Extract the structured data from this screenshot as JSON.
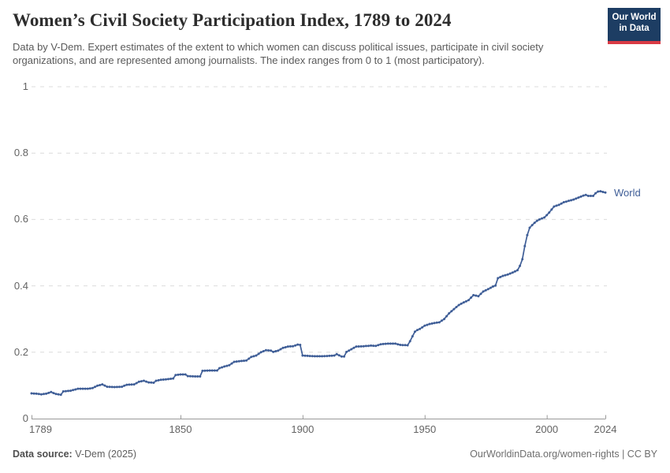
{
  "header": {
    "title": "Women’s Civil Society Participation Index, 1789 to 2024",
    "subtitle": "Data by V-Dem. Expert estimates of the extent to which women can discuss political issues, participate in civil society organizations, and are represented among journalists. The index ranges from 0 to 1 (most participatory)."
  },
  "logo": {
    "line1": "Our World",
    "line2": "in Data",
    "bg_color": "#1d3d63",
    "accent_color": "#d93a45"
  },
  "footer": {
    "source_label": "Data source:",
    "source_value": " V-Dem (2025)",
    "note": "OurWorldinData.org/women-rights | CC BY"
  },
  "colors": {
    "line": "#3f5e97",
    "gridline": "#dcdcdc",
    "axis": "#9a9a9a",
    "tick_text": "#636363"
  },
  "chart_data": {
    "type": "line",
    "title": "Women’s Civil Society Participation Index, 1789 to 2024",
    "xlabel": "",
    "ylabel": "",
    "x": {
      "min": 1789,
      "max": 2024,
      "ticks": [
        1789,
        1850,
        1900,
        1950,
        2000,
        2024
      ]
    },
    "y": {
      "min": 0,
      "max": 1,
      "ticks": [
        0,
        0.2,
        0.4,
        0.6,
        0.8,
        1
      ],
      "tick_labels": [
        "0",
        "0.2",
        "0.4",
        "0.6",
        "0.8",
        "1"
      ],
      "grid": "dashed"
    },
    "legend_position": "end-of-line",
    "series": [
      {
        "name": "World",
        "color": "#3f5e97",
        "points": [
          [
            1789,
            0.076
          ],
          [
            1791,
            0.075
          ],
          [
            1793,
            0.073
          ],
          [
            1795,
            0.075
          ],
          [
            1797,
            0.08
          ],
          [
            1799,
            0.074
          ],
          [
            1801,
            0.072
          ],
          [
            1802,
            0.082
          ],
          [
            1805,
            0.084
          ],
          [
            1808,
            0.09
          ],
          [
            1812,
            0.09
          ],
          [
            1814,
            0.092
          ],
          [
            1816,
            0.099
          ],
          [
            1818,
            0.103
          ],
          [
            1820,
            0.096
          ],
          [
            1823,
            0.095
          ],
          [
            1826,
            0.096
          ],
          [
            1828,
            0.102
          ],
          [
            1831,
            0.103
          ],
          [
            1833,
            0.111
          ],
          [
            1835,
            0.114
          ],
          [
            1837,
            0.109
          ],
          [
            1839,
            0.108
          ],
          [
            1840,
            0.114
          ],
          [
            1842,
            0.117
          ],
          [
            1845,
            0.119
          ],
          [
            1847,
            0.121
          ],
          [
            1848,
            0.131
          ],
          [
            1850,
            0.133
          ],
          [
            1852,
            0.133
          ],
          [
            1853,
            0.128
          ],
          [
            1856,
            0.127
          ],
          [
            1858,
            0.127
          ],
          [
            1859,
            0.144
          ],
          [
            1862,
            0.145
          ],
          [
            1865,
            0.145
          ],
          [
            1866,
            0.152
          ],
          [
            1868,
            0.157
          ],
          [
            1870,
            0.161
          ],
          [
            1872,
            0.171
          ],
          [
            1874,
            0.173
          ],
          [
            1877,
            0.175
          ],
          [
            1879,
            0.186
          ],
          [
            1881,
            0.19
          ],
          [
            1883,
            0.2
          ],
          [
            1885,
            0.206
          ],
          [
            1887,
            0.205
          ],
          [
            1888,
            0.201
          ],
          [
            1890,
            0.205
          ],
          [
            1892,
            0.213
          ],
          [
            1894,
            0.217
          ],
          [
            1896,
            0.218
          ],
          [
            1898,
            0.223
          ],
          [
            1899,
            0.222
          ],
          [
            1900,
            0.19
          ],
          [
            1902,
            0.189
          ],
          [
            1905,
            0.188
          ],
          [
            1908,
            0.188
          ],
          [
            1911,
            0.189
          ],
          [
            1913,
            0.19
          ],
          [
            1914,
            0.194
          ],
          [
            1916,
            0.187
          ],
          [
            1917,
            0.187
          ],
          [
            1918,
            0.201
          ],
          [
            1920,
            0.209
          ],
          [
            1922,
            0.217
          ],
          [
            1925,
            0.218
          ],
          [
            1928,
            0.22
          ],
          [
            1930,
            0.219
          ],
          [
            1932,
            0.224
          ],
          [
            1935,
            0.226
          ],
          [
            1938,
            0.226
          ],
          [
            1940,
            0.222
          ],
          [
            1943,
            0.221
          ],
          [
            1944,
            0.233
          ],
          [
            1945,
            0.248
          ],
          [
            1946,
            0.262
          ],
          [
            1947,
            0.267
          ],
          [
            1948,
            0.27
          ],
          [
            1950,
            0.28
          ],
          [
            1952,
            0.285
          ],
          [
            1954,
            0.288
          ],
          [
            1956,
            0.29
          ],
          [
            1958,
            0.3
          ],
          [
            1960,
            0.317
          ],
          [
            1962,
            0.33
          ],
          [
            1964,
            0.342
          ],
          [
            1966,
            0.35
          ],
          [
            1968,
            0.357
          ],
          [
            1970,
            0.372
          ],
          [
            1972,
            0.369
          ],
          [
            1974,
            0.383
          ],
          [
            1976,
            0.39
          ],
          [
            1978,
            0.398
          ],
          [
            1979,
            0.401
          ],
          [
            1980,
            0.423
          ],
          [
            1982,
            0.43
          ],
          [
            1984,
            0.434
          ],
          [
            1986,
            0.44
          ],
          [
            1988,
            0.447
          ],
          [
            1989,
            0.46
          ],
          [
            1990,
            0.48
          ],
          [
            1991,
            0.52
          ],
          [
            1992,
            0.553
          ],
          [
            1993,
            0.575
          ],
          [
            1994,
            0.583
          ],
          [
            1995,
            0.59
          ],
          [
            1996,
            0.596
          ],
          [
            1997,
            0.6
          ],
          [
            1998,
            0.603
          ],
          [
            1999,
            0.606
          ],
          [
            2000,
            0.613
          ],
          [
            2001,
            0.621
          ],
          [
            2002,
            0.63
          ],
          [
            2003,
            0.639
          ],
          [
            2005,
            0.644
          ],
          [
            2007,
            0.652
          ],
          [
            2009,
            0.656
          ],
          [
            2011,
            0.66
          ],
          [
            2013,
            0.666
          ],
          [
            2015,
            0.672
          ],
          [
            2016,
            0.674
          ],
          [
            2017,
            0.671
          ],
          [
            2019,
            0.671
          ],
          [
            2020,
            0.679
          ],
          [
            2021,
            0.684
          ],
          [
            2022,
            0.685
          ],
          [
            2023,
            0.683
          ],
          [
            2024,
            0.681
          ]
        ]
      }
    ]
  }
}
